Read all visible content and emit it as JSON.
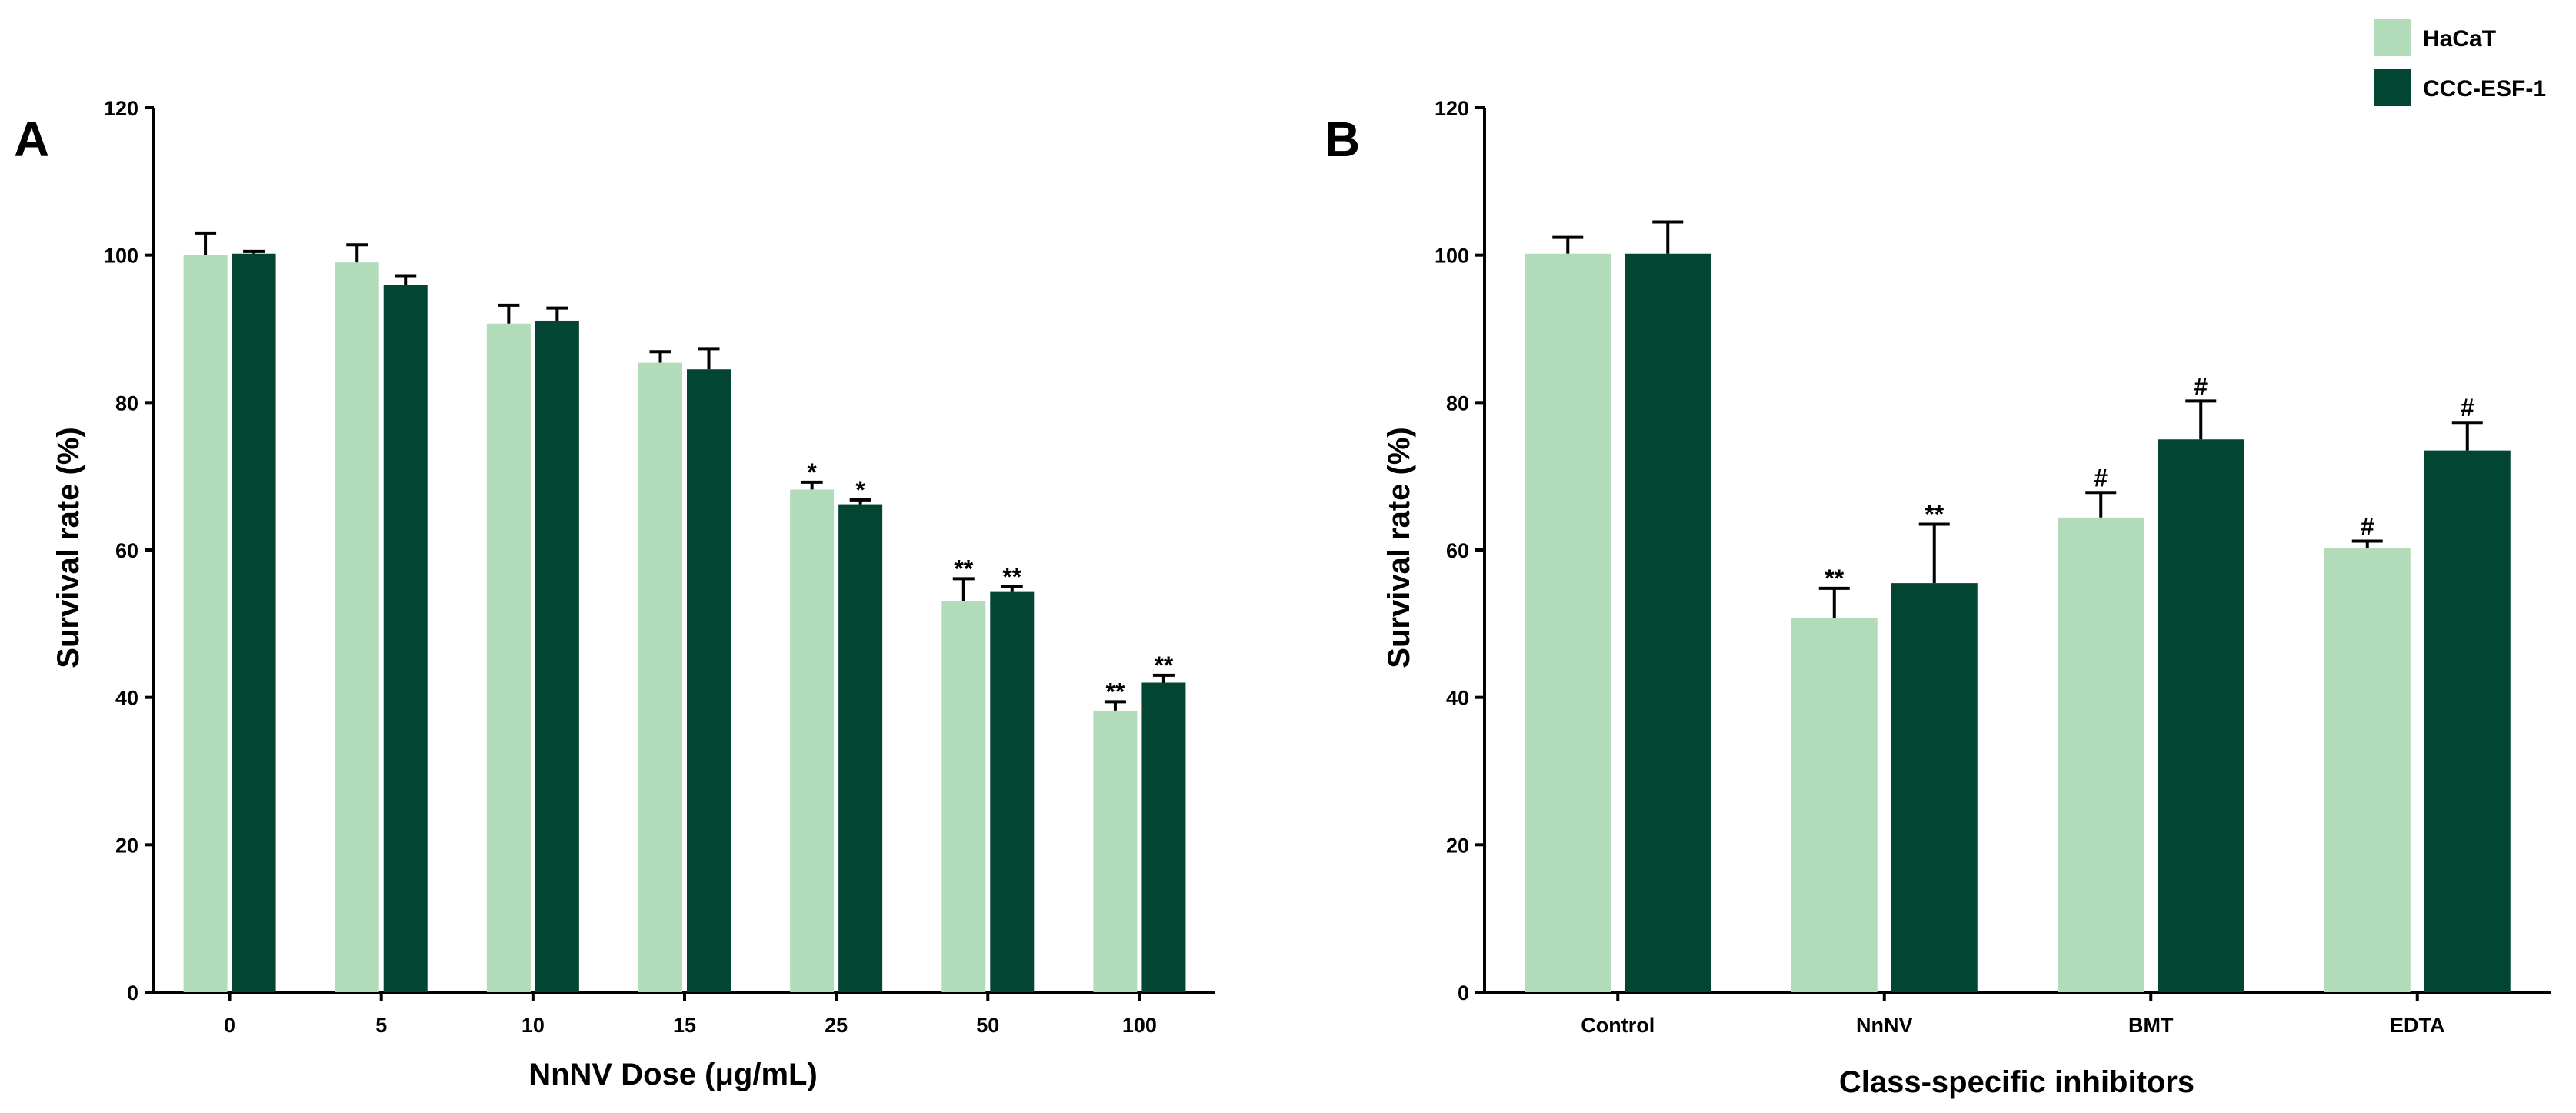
{
  "legend": {
    "items": [
      {
        "name": "HaCaT",
        "color": "#b2dbb9"
      },
      {
        "name": "CCC-ESF-1",
        "color": "#024532"
      }
    ]
  },
  "chart_data": [
    {
      "panel": "A",
      "type": "bar",
      "xlabel": "NnNV Dose (μg/mL)",
      "ylabel": "Survival rate (%)",
      "ylim": [
        0,
        120
      ],
      "yticks": [
        "0",
        "20",
        "40",
        "60",
        "80",
        "100",
        "120"
      ],
      "categories": [
        "0",
        "5",
        "10",
        "15",
        "25",
        "50",
        "100"
      ],
      "series": [
        {
          "name": "HaCaT",
          "values": [
            100,
            99,
            90.7,
            85.4,
            68.2,
            53.1,
            38.2
          ],
          "errors": [
            3.0,
            2.4,
            2.5,
            1.5,
            1.0,
            3.0,
            1.2
          ],
          "annotations": [
            "",
            "",
            "",
            "",
            "*",
            "**",
            "**"
          ]
        },
        {
          "name": "CCC-ESF-1",
          "values": [
            100.2,
            96.0,
            91.1,
            84.5,
            66.2,
            54.3,
            42.0
          ],
          "errors": [
            0.3,
            1.2,
            1.7,
            2.8,
            0.6,
            0.7,
            1.0
          ],
          "annotations": [
            "",
            "",
            "",
            "",
            "*",
            "**",
            "**"
          ]
        }
      ]
    },
    {
      "panel": "B",
      "type": "bar",
      "xlabel": "Class-specific inhibitors",
      "ylabel": "Survival rate (%)",
      "ylim": [
        0,
        120
      ],
      "yticks": [
        "0",
        "20",
        "40",
        "60",
        "80",
        "100",
        "120"
      ],
      "categories": [
        "Control",
        "NnNV",
        "BMT",
        "EDTA"
      ],
      "series": [
        {
          "name": "HaCaT",
          "values": [
            100.2,
            50.8,
            64.4,
            60.2
          ],
          "errors": [
            2.2,
            4.0,
            3.4,
            1.0
          ],
          "annotations": [
            "",
            "**",
            "#",
            "#"
          ]
        },
        {
          "name": "CCC-ESF-1",
          "values": [
            100.2,
            55.5,
            75.0,
            73.5
          ],
          "errors": [
            4.3,
            8.0,
            5.2,
            3.8
          ],
          "annotations": [
            "",
            "**",
            "#",
            "#"
          ]
        }
      ]
    }
  ]
}
